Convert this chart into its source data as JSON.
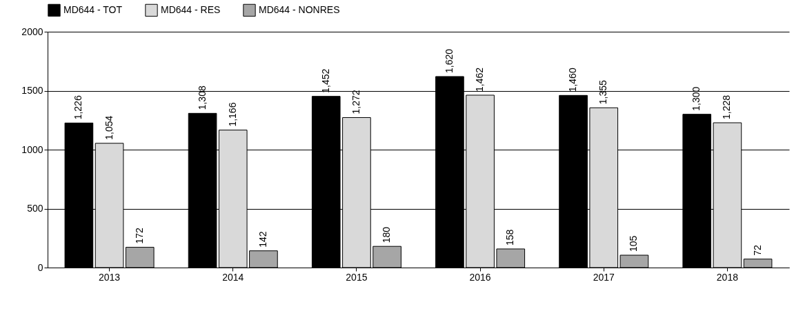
{
  "chart_data": {
    "type": "bar",
    "categories": [
      "2013",
      "2014",
      "2015",
      "2016",
      "2017",
      "2018"
    ],
    "series": [
      {
        "name": "MD644 - TOT",
        "color": "#000000",
        "values": [
          1226,
          1308,
          1452,
          1620,
          1460,
          1300
        ],
        "value_labels": [
          "1,226",
          "1,308",
          "1,452",
          "1,620",
          "1,460",
          "1,300"
        ]
      },
      {
        "name": "MD644 - RES",
        "color": "#d9d9d9",
        "values": [
          1054,
          1166,
          1272,
          1462,
          1355,
          1228
        ],
        "value_labels": [
          "1,054",
          "1,166",
          "1,272",
          "1,462",
          "1,355",
          "1,228"
        ]
      },
      {
        "name": "MD644 - NONRES",
        "color": "#a6a6a6",
        "values": [
          172,
          142,
          180,
          158,
          105,
          72
        ],
        "value_labels": [
          "172",
          "142",
          "180",
          "158",
          "105",
          "72"
        ]
      }
    ],
    "ylim": [
      0,
      2000
    ],
    "yticks": [
      0,
      500,
      1000,
      1500,
      2000
    ],
    "grid": "y",
    "legend": "top"
  }
}
